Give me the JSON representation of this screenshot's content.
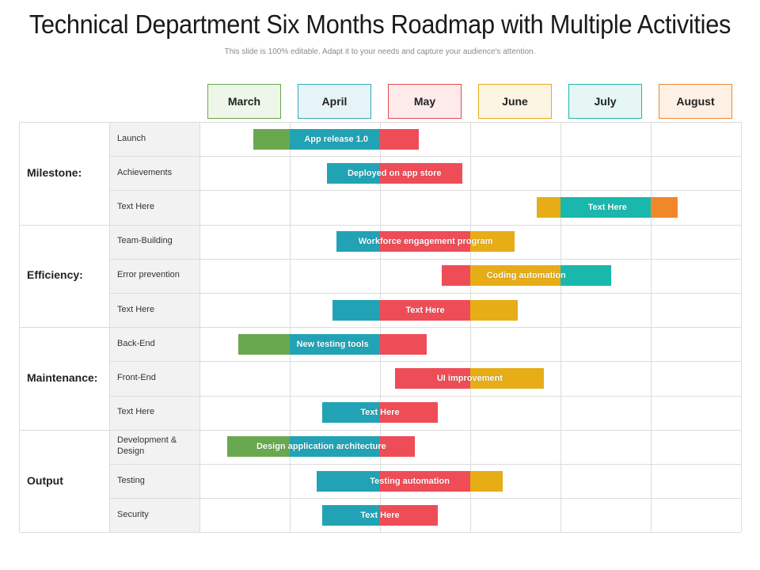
{
  "title": "Technical Department Six Months Roadmap with Multiple Activities",
  "subtitle": "This slide is 100% editable. Adapt it to your needs and capture your audience's attention.",
  "colors": {
    "green": "#6aa84f",
    "teal": "#22a3b5",
    "red": "#ee4d57",
    "yellow": "#e6ad17",
    "tealbright": "#1ab7ad",
    "orange": "#f0882a"
  },
  "months": [
    {
      "label": "March",
      "border": "#6aa84f",
      "bg": "#eef6ea"
    },
    {
      "label": "April",
      "border": "#3aa7b9",
      "bg": "#e6f4f7"
    },
    {
      "label": "May",
      "border": "#e24a55",
      "bg": "#fdebec"
    },
    {
      "label": "June",
      "border": "#e6ad17",
      "bg": "#fdf5e3"
    },
    {
      "label": "July",
      "border": "#1ab7ad",
      "bg": "#e6f6f4"
    },
    {
      "label": "August",
      "border": "#f0882a",
      "bg": "#fdf0e4"
    }
  ],
  "groups": [
    {
      "label": "Milestone:",
      "rows": [
        "Launch",
        "Achievements",
        "Text Here"
      ]
    },
    {
      "label": "Efficiency:",
      "rows": [
        "Team-Building",
        "Error prevention",
        "Text Here"
      ]
    },
    {
      "label": "Maintenance:",
      "rows": [
        "Back-End",
        "Front-End",
        "Text Here"
      ]
    },
    {
      "label": "Output",
      "rows": [
        "Development & Design",
        "Testing",
        "Security"
      ]
    }
  ],
  "bars": [
    {
      "label": "App release 1.0",
      "segments": [
        [
          "green",
          2.6,
          3.0
        ],
        [
          "teal",
          3.0,
          4.0
        ],
        [
          "red",
          4.0,
          4.43
        ]
      ]
    },
    {
      "label": "Deployed on app store",
      "segments": [
        [
          "teal",
          3.41,
          4.0
        ],
        [
          "red",
          4.0,
          4.91
        ]
      ]
    },
    {
      "label": "Text Here",
      "segments": [
        [
          "yellow",
          5.74,
          6.0
        ],
        [
          "tealbright",
          6.0,
          7.0
        ],
        [
          "orange",
          7.0,
          7.3
        ]
      ]
    },
    {
      "label": "Workforce engagement program",
      "segments": [
        [
          "teal",
          3.52,
          4.0
        ],
        [
          "red",
          4.0,
          5.0
        ],
        [
          "yellow",
          5.0,
          5.49
        ]
      ]
    },
    {
      "label": "Coding automation",
      "segments": [
        [
          "red",
          4.68,
          5.0
        ],
        [
          "yellow",
          5.0,
          6.0
        ],
        [
          "tealbright",
          6.0,
          6.56
        ]
      ]
    },
    {
      "label": "Text Here",
      "segments": [
        [
          "teal",
          3.47,
          4.0
        ],
        [
          "red",
          4.0,
          5.0
        ],
        [
          "yellow",
          5.0,
          5.53
        ]
      ]
    },
    {
      "label": "New testing tools",
      "segments": [
        [
          "green",
          2.43,
          3.0
        ],
        [
          "teal",
          3.0,
          4.0
        ],
        [
          "red",
          4.0,
          4.52
        ]
      ]
    },
    {
      "label": "UI improvement",
      "segments": [
        [
          "red",
          4.17,
          5.0
        ],
        [
          "yellow",
          5.0,
          5.82
        ]
      ]
    },
    {
      "label": "Text Here",
      "segments": [
        [
          "teal",
          3.36,
          4.0
        ],
        [
          "red",
          4.0,
          4.64
        ]
      ]
    },
    {
      "label": "Design application architecture",
      "segments": [
        [
          "green",
          2.31,
          3.0
        ],
        [
          "teal",
          3.0,
          4.0
        ],
        [
          "red",
          4.0,
          4.39
        ]
      ]
    },
    {
      "label": "Testing automation",
      "segments": [
        [
          "teal",
          3.3,
          4.0
        ],
        [
          "red",
          4.0,
          5.0
        ],
        [
          "yellow",
          5.0,
          5.36
        ]
      ]
    },
    {
      "label": "Text Here",
      "segments": [
        [
          "teal",
          3.36,
          4.0
        ],
        [
          "red",
          4.0,
          4.64
        ]
      ]
    }
  ]
}
